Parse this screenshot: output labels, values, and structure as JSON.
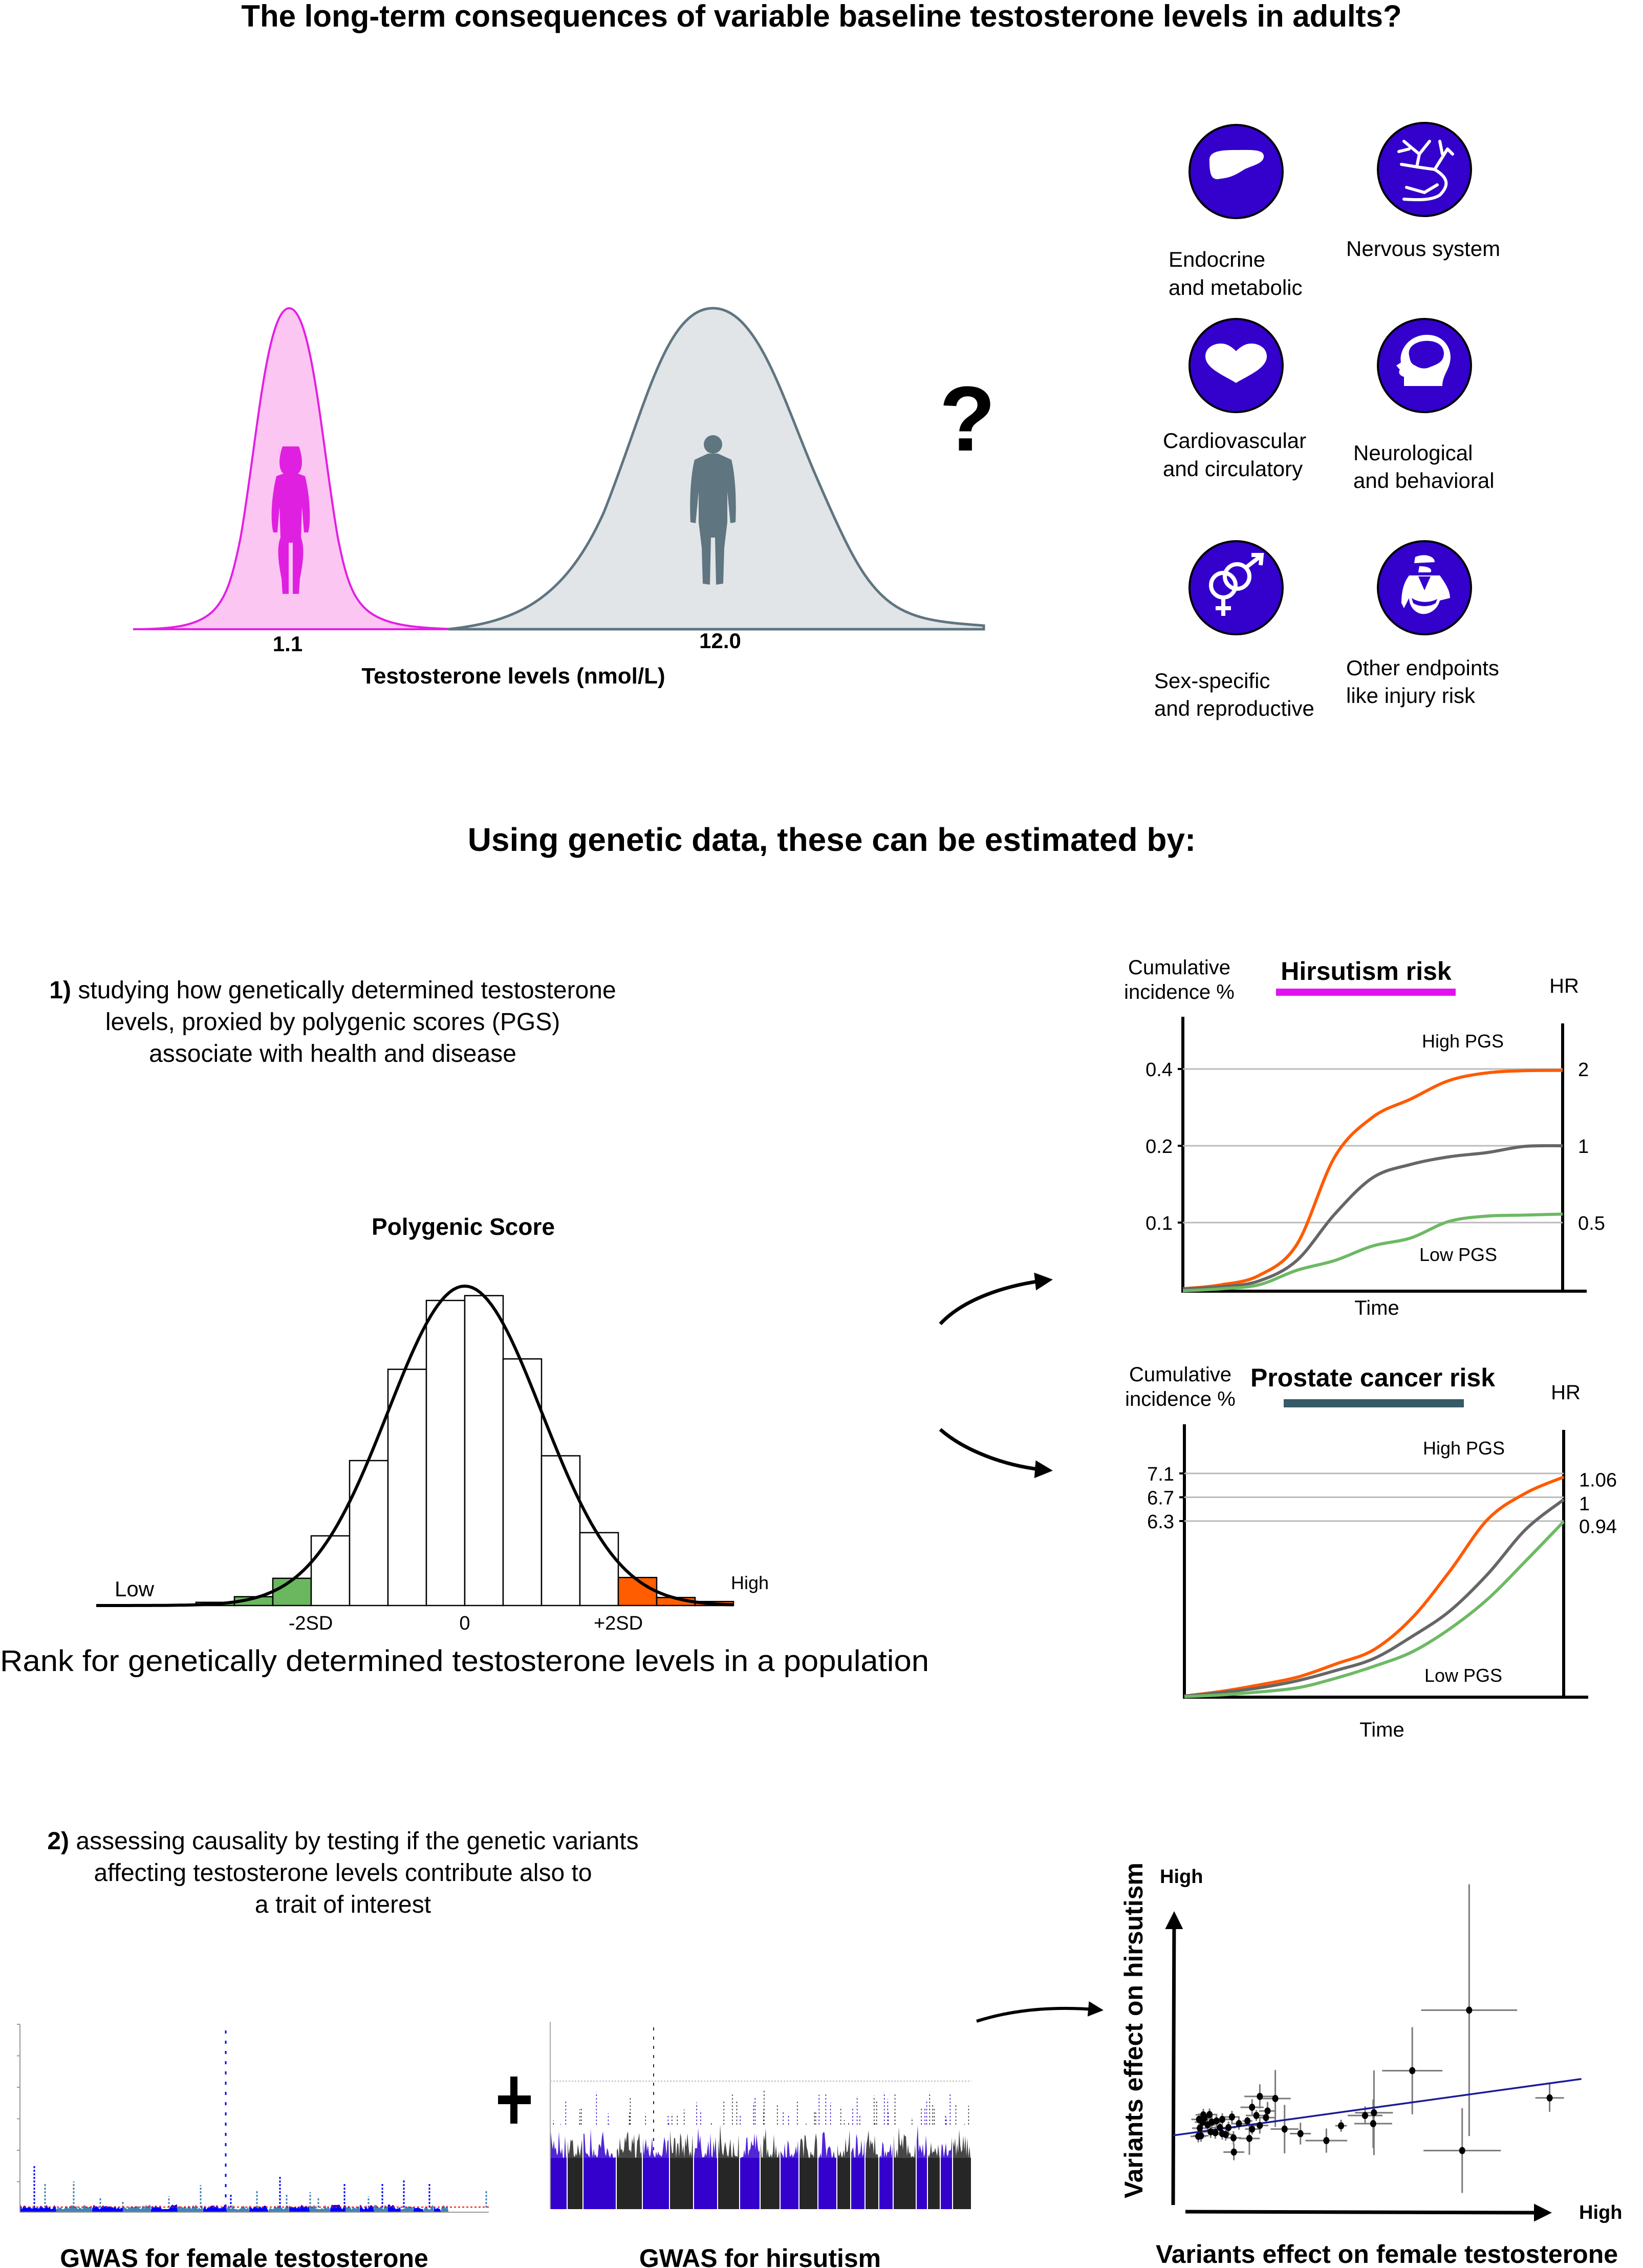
{
  "title": "The long-term consequences of variable baseline testosterone levels in adults?",
  "distribution": {
    "female_value": "1.1",
    "male_value": "12.0",
    "xlabel": "Testosterone levels (nmol/L)",
    "question_mark": "?",
    "colors": {
      "female_fill": "#fcc6f2",
      "female_stroke": "#e41ee4",
      "male_fill": "#e1e5e8",
      "male_stroke": "#5f7580"
    }
  },
  "outcomes": {
    "icon_color": "#3300cc",
    "items": [
      {
        "icon": "liver-icon",
        "line1": "Endocrine",
        "line2": "and metabolic"
      },
      {
        "icon": "neuron-icon",
        "line1": "Nervous system",
        "line2": ""
      },
      {
        "icon": "heart-icon",
        "line1": "Cardiovascular",
        "line2": "and circulatory"
      },
      {
        "icon": "head-brain-icon",
        "line1": "Neurological",
        "line2": "and behavioral"
      },
      {
        "icon": "gender-symbols-icon",
        "line1": "Sex-specific",
        "line2": "and reproductive"
      },
      {
        "icon": "injured-person-icon",
        "line1": "Other endpoints",
        "line2": "like injury risk"
      }
    ]
  },
  "subtitle": "Using genetic data, these can be estimated by:",
  "section1": {
    "number": "1)",
    "lines": [
      "studying how genetically determined testosterone",
      "levels, proxied by polygenic scores (PGS)",
      "associate with health and disease"
    ]
  },
  "section2": {
    "number": "2)",
    "lines": [
      "assessing causality by testing if the genetic variants",
      "affecting testosterone levels contribute also to",
      "a trait of interest"
    ]
  },
  "gwas": {
    "left_label": "GWAS for female testosterone",
    "right_label": "GWAS for hirsutism",
    "plus": "+"
  },
  "chart_data": [
    {
      "id": "pgs",
      "type": "bar",
      "title": "Polygenic Score",
      "xlabel": "Rank for genetically determined testosterone levels in a population",
      "x_unit": "SD",
      "bin_edges": [
        -3.5,
        -3,
        -2.5,
        -2,
        -1.5,
        -1,
        -0.5,
        0,
        0.5,
        1,
        1.5,
        2,
        2.5,
        3,
        3.5
      ],
      "values": [
        0.004,
        0.011,
        0.034,
        0.087,
        0.181,
        0.295,
        0.381,
        0.387,
        0.308,
        0.187,
        0.091,
        0.035,
        0.01,
        0.005
      ],
      "highlight": [
        "low",
        "low",
        "low",
        "",
        "",
        "",
        "",
        "",
        "",
        "",
        "",
        "high",
        "high",
        "high"
      ],
      "tick_labels": [
        {
          "x": -2,
          "label": "-2SD"
        },
        {
          "x": 0,
          "label": "0"
        },
        {
          "x": 2,
          "label": "+2SD"
        }
      ],
      "low_label": "Low",
      "high_label": "High",
      "overlay": "normal curve",
      "colors": {
        "low": "#6ab75f",
        "high": "#ff5d00",
        "bar": "#ffffff"
      }
    },
    {
      "id": "hirsutism",
      "type": "line",
      "title": "Hirsutism risk",
      "title_bar_color": "#e510f0",
      "ylabel": "Cumulative incidence %",
      "xlabel": "Time",
      "y2label": "HR",
      "y_scale": "log",
      "ylim": [
        0.054,
        0.64
      ],
      "yticks": [
        0.1,
        0.2,
        0.4
      ],
      "ytick_labels": [
        "0.1",
        "0.2",
        "0.4"
      ],
      "hr_labels": [
        {
          "y": 0.4,
          "label": "2"
        },
        {
          "y": 0.2,
          "label": "1"
        },
        {
          "y": 0.1,
          "label": "0.5"
        }
      ],
      "grid": true,
      "high_label": "High PGS",
      "low_label": "Low PGS",
      "series": [
        {
          "color": "#ff5a00",
          "values": [
            0.055,
            0.057,
            0.062,
            0.082,
            0.181,
            0.259,
            0.305,
            0.36,
            0.386,
            0.394,
            0.395
          ]
        },
        {
          "color": "#666666",
          "values": [
            0.055,
            0.056,
            0.059,
            0.071,
            0.108,
            0.15,
            0.169,
            0.181,
            0.188,
            0.199,
            0.2
          ]
        },
        {
          "color": "#6db964",
          "values": [
            0.054,
            0.055,
            0.057,
            0.065,
            0.071,
            0.081,
            0.087,
            0.101,
            0.106,
            0.107,
            0.108
          ]
        }
      ]
    },
    {
      "id": "prostate",
      "type": "line",
      "title": "Prostate cancer risk",
      "title_bar_color": "#365a66",
      "ylabel": "Cumulative incidence %",
      "xlabel": "Time",
      "y2label": "HR",
      "ylim": [
        3.3,
        7.93
      ],
      "yticks": [
        6.3,
        6.7,
        7.1
      ],
      "ytick_labels": [
        "6.3",
        "6.7",
        "7.1"
      ],
      "hr_labels": [
        {
          "y": 7.0,
          "label": "1.06"
        },
        {
          "y": 6.6,
          "label": "1"
        },
        {
          "y": 6.22,
          "label": "0.94"
        }
      ],
      "grid": true,
      "high_label": "High PGS",
      "low_label": "Low PGS",
      "series": [
        {
          "color": "#ff5a00",
          "values": [
            3.36,
            3.44,
            3.55,
            3.68,
            3.9,
            4.14,
            4.67,
            5.46,
            6.33,
            6.77,
            7.04
          ]
        },
        {
          "color": "#666666",
          "values": [
            3.36,
            3.42,
            3.5,
            3.62,
            3.79,
            3.99,
            4.36,
            4.79,
            5.41,
            6.16,
            6.66
          ]
        },
        {
          "color": "#6db964",
          "values": [
            3.35,
            3.38,
            3.43,
            3.5,
            3.66,
            3.86,
            4.1,
            4.49,
            4.99,
            5.63,
            6.29
          ]
        }
      ]
    },
    {
      "id": "mr-scatter",
      "type": "scatter",
      "xlabel": "Variants effect on female testosterone",
      "ylabel": "Variants effect on hirsutism",
      "x_high_label": "High",
      "y_high_label": "High",
      "xlim": [
        0,
        100
      ],
      "ylim": [
        0,
        100
      ],
      "fit_line": {
        "intercept": 23.0,
        "slope": 0.177,
        "x_range": [
          0,
          105.5
        ],
        "color": "#1a1a9a"
      },
      "points": [
        {
          "x": 76.5,
          "y": 64.4,
          "xerr": 12.4,
          "yerr": 41.6
        },
        {
          "x": 61.8,
          "y": 44.4,
          "xerr": 7.8,
          "yerr": 14.4
        },
        {
          "x": 74.7,
          "y": 18.0,
          "xerr": 10,
          "yerr": 14
        },
        {
          "x": 97.3,
          "y": 35.4,
          "xerr": 3.7,
          "yerr": 4.6
        },
        {
          "x": 51.9,
          "y": 30.5,
          "xerr": 4.9,
          "yerr": 14
        },
        {
          "x": 51.7,
          "y": 26.9,
          "xerr": 4.9,
          "yerr": 8
        },
        {
          "x": 49.6,
          "y": 29.6,
          "xerr": 4.5,
          "yerr": 3
        },
        {
          "x": 43.4,
          "y": 26.2,
          "xerr": 1.5,
          "yerr": 2
        },
        {
          "x": 39.6,
          "y": 21.3,
          "xerr": 5.4,
          "yerr": 4
        },
        {
          "x": 32.9,
          "y": 23.6,
          "xerr": 2.7,
          "yerr": 3.6
        },
        {
          "x": 28.8,
          "y": 25.1,
          "xerr": 3.6,
          "yerr": 8
        },
        {
          "x": 26.4,
          "y": 35.2,
          "xerr": 4,
          "yerr": 9.4
        },
        {
          "x": 22.4,
          "y": 35.9,
          "xerr": 4,
          "yerr": 4
        },
        {
          "x": 24.4,
          "y": 31.1,
          "xerr": 2.2,
          "yerr": 3
        },
        {
          "x": 20.4,
          "y": 32.3,
          "xerr": 3,
          "yerr": 2.7
        },
        {
          "x": 21.5,
          "y": 29.6,
          "xerr": 2.7,
          "yerr": 1.8
        },
        {
          "x": 24.0,
          "y": 28.9,
          "xerr": 2.2,
          "yerr": 1.8
        },
        {
          "x": 22.4,
          "y": 26.3,
          "xerr": 2.2,
          "yerr": 2.7
        },
        {
          "x": 20.4,
          "y": 25.1,
          "xerr": 1.8,
          "yerr": 1.8
        },
        {
          "x": 19.2,
          "y": 27.8,
          "xerr": 1.3,
          "yerr": 1.3
        },
        {
          "x": 19.7,
          "y": 22.0,
          "xerr": 2.7,
          "yerr": 5.4
        },
        {
          "x": 15.7,
          "y": 17.5,
          "xerr": 2.7,
          "yerr": 2.7
        },
        {
          "x": 15.6,
          "y": 22.2,
          "xerr": 2,
          "yerr": 2.2
        },
        {
          "x": 17.0,
          "y": 26.9,
          "xerr": 2,
          "yerr": 2
        },
        {
          "x": 15.2,
          "y": 29.1,
          "xerr": 2,
          "yerr": 2
        },
        {
          "x": 14.3,
          "y": 25.6,
          "xerr": 2,
          "yerr": 2
        },
        {
          "x": 13.6,
          "y": 23.3,
          "xerr": 2,
          "yerr": 2
        },
        {
          "x": 12.7,
          "y": 23.6,
          "xerr": 2,
          "yerr": 2
        },
        {
          "x": 12.7,
          "y": 28.3,
          "xerr": 2,
          "yerr": 2
        },
        {
          "x": 11.2,
          "y": 27.8,
          "xerr": 2,
          "yerr": 2
        },
        {
          "x": 10.9,
          "y": 23.9,
          "xerr": 2,
          "yerr": 2
        },
        {
          "x": 10.0,
          "y": 27.4,
          "xerr": 2,
          "yerr": 2
        },
        {
          "x": 9.7,
          "y": 24.2,
          "xerr": 2,
          "yerr": 2
        },
        {
          "x": 8.9,
          "y": 26.5,
          "xerr": 2,
          "yerr": 2
        },
        {
          "x": 9.4,
          "y": 29.9,
          "xerr": 2,
          "yerr": 2
        },
        {
          "x": 7.8,
          "y": 29.8,
          "xerr": 2,
          "yerr": 2
        },
        {
          "x": 7.6,
          "y": 27.4,
          "xerr": 2,
          "yerr": 2
        },
        {
          "x": 6.9,
          "y": 25.4,
          "xerr": 2,
          "yerr": 2
        },
        {
          "x": 6.7,
          "y": 28.3,
          "xerr": 2,
          "yerr": 2
        },
        {
          "x": 7.2,
          "y": 22.9,
          "xerr": 2,
          "yerr": 2
        },
        {
          "x": 6.5,
          "y": 22.7,
          "xerr": 2,
          "yerr": 2
        },
        {
          "x": 8.1,
          "y": 28.7,
          "xerr": 2,
          "yerr": 2
        },
        {
          "x": 12.1,
          "y": 25.6,
          "xerr": 2,
          "yerr": 2
        }
      ]
    }
  ]
}
